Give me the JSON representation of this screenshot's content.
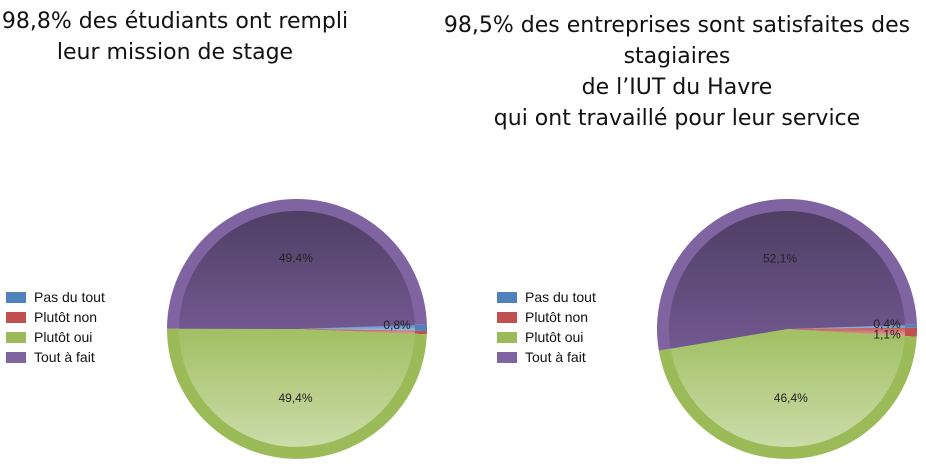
{
  "chart_data": [
    {
      "type": "pie",
      "title_lines": [
        "98,8% des étudiants ont rempli",
        "leur mission de stage"
      ],
      "categories": [
        "Pas du tout",
        "Plutôt non",
        "Plutôt oui",
        "Tout à fait"
      ],
      "values": [
        0.8,
        0.4,
        49.4,
        49.4
      ],
      "value_labels": [
        "0,8%",
        "",
        "49,4%",
        "49,4%"
      ],
      "legend_position": "left"
    },
    {
      "type": "pie",
      "title_lines": [
        "98,5% des entreprises sont satisfaites des",
        "stagiaires",
        "de l’IUT du Havre",
        "qui ont travaillé pour leur service"
      ],
      "categories": [
        "Pas du tout",
        "Plutôt non",
        "Plutôt oui",
        "Tout à fait"
      ],
      "values": [
        0.4,
        1.1,
        46.4,
        52.1
      ],
      "value_labels": [
        "0,4%",
        "1,1%",
        "46,4%",
        "52,1%"
      ],
      "legend_position": "left"
    }
  ],
  "colors": {
    "Pas du tout": "#4f81bd",
    "Plutôt non": "#c0504d",
    "Plutôt oui": "#9bbb59",
    "Tout à fait": "#8064a2"
  }
}
